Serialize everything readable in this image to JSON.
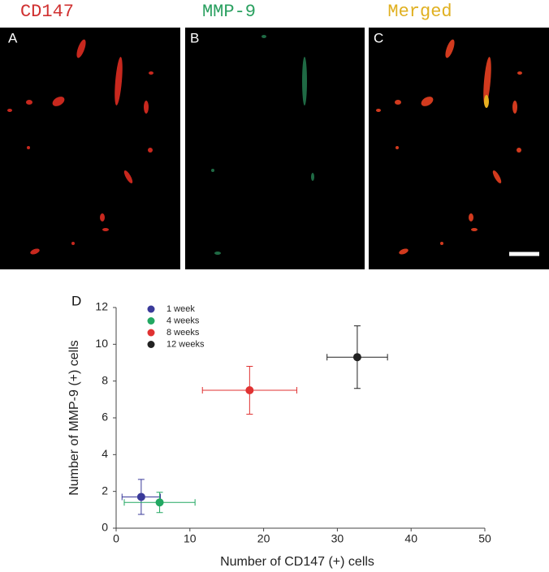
{
  "panels": [
    {
      "label": "A",
      "title": "CD147"
    },
    {
      "label": "B",
      "title": "MMP-9"
    },
    {
      "label": "C",
      "title": "Merged"
    }
  ],
  "chart_data": {
    "type": "scatter",
    "panel_label": "D",
    "x_label": "Number of CD147 (+) cells",
    "y_label": "Number of MMP-9 (+) cells",
    "xlim": [
      0,
      50
    ],
    "xticks": [
      0,
      10,
      20,
      30,
      40,
      50
    ],
    "ylim": [
      0,
      12
    ],
    "yticks": [
      0,
      2,
      4,
      6,
      8,
      10,
      12
    ],
    "grid": false,
    "legend": "upper left",
    "series": [
      {
        "name": "1 week",
        "color": "#3a3a9a",
        "x": [
          3.4
        ],
        "values": [
          1.7
        ],
        "xerr": [
          2.6
        ],
        "yerr": [
          0.95
        ]
      },
      {
        "name": "4 weeks",
        "color": "#22a862",
        "x": [
          5.9
        ],
        "values": [
          1.4
        ],
        "xerr": [
          4.8
        ],
        "yerr": [
          0.55
        ]
      },
      {
        "name": "8 weeks",
        "color": "#e03232",
        "x": [
          18.1
        ],
        "values": [
          7.5
        ],
        "xerr": [
          6.4
        ],
        "yerr": [
          1.3
        ]
      },
      {
        "name": "12 weeks",
        "color": "#222222",
        "x": [
          32.7
        ],
        "values": [
          9.3
        ],
        "xerr": [
          4.1
        ],
        "yerr": [
          1.7
        ]
      }
    ]
  }
}
